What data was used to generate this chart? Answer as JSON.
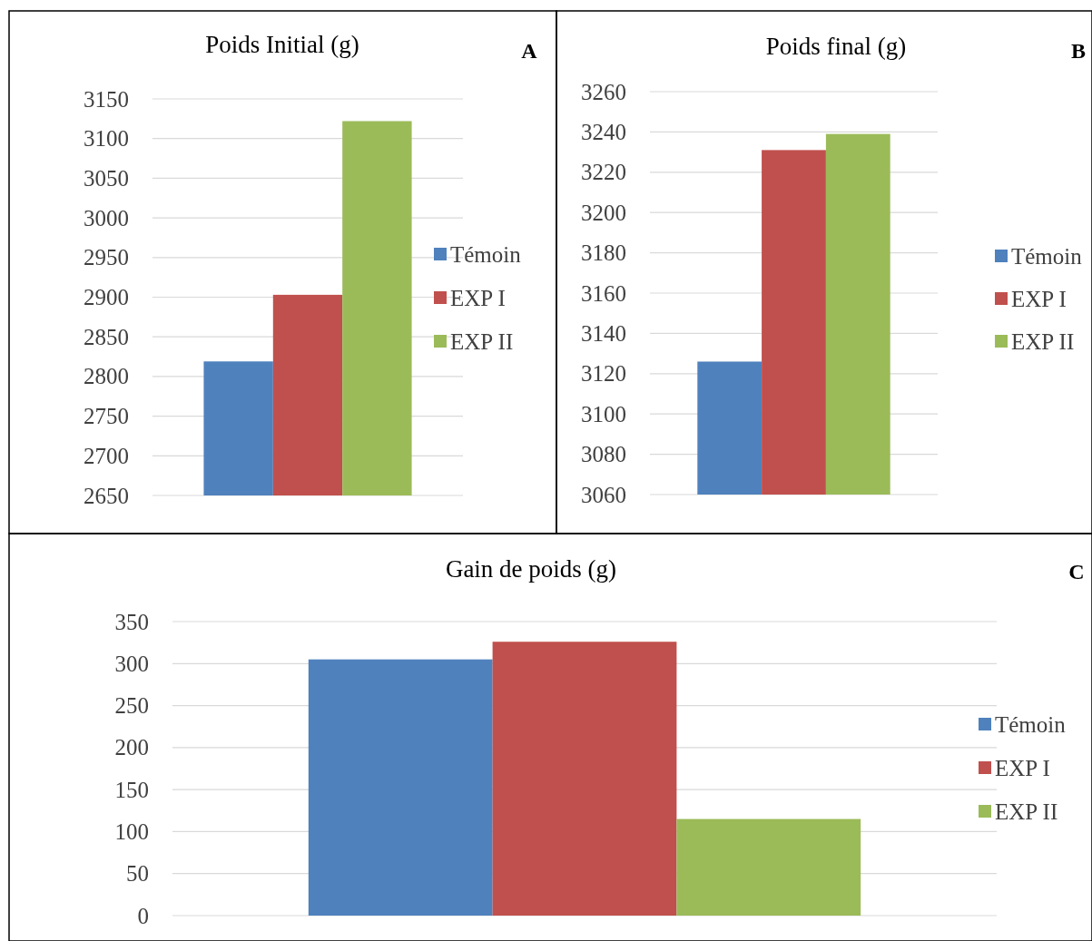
{
  "chart_data": [
    {
      "type": "bar",
      "title": "Poids Initial (g)",
      "annotations": [
        "A"
      ],
      "categories": [
        null
      ],
      "series": [
        {
          "name": "Témoin",
          "color": "#4f81bd",
          "values": [
            2819
          ]
        },
        {
          "name": "EXP I",
          "color": "#c0504d",
          "values": [
            2903
          ]
        },
        {
          "name": "EXP II",
          "color": "#9bbb59",
          "values": [
            3122
          ]
        }
      ],
      "ylim": [
        2650,
        3150
      ],
      "yticks": [
        2650,
        2700,
        2750,
        2800,
        2850,
        2900,
        2950,
        3000,
        3050,
        3100,
        3150
      ],
      "grid": "y",
      "legend": "right"
    },
    {
      "type": "bar",
      "title": "Poids final (g)",
      "annotations": [
        "B"
      ],
      "categories": [
        null
      ],
      "series": [
        {
          "name": "Témoin",
          "color": "#4f81bd",
          "values": [
            3126
          ]
        },
        {
          "name": "EXP I",
          "color": "#c0504d",
          "values": [
            3231
          ]
        },
        {
          "name": "EXP II",
          "color": "#9bbb59",
          "values": [
            3239
          ]
        }
      ],
      "ylim": [
        3060,
        3260
      ],
      "yticks": [
        3060,
        3080,
        3100,
        3120,
        3140,
        3160,
        3180,
        3200,
        3220,
        3240,
        3260
      ],
      "grid": "y",
      "legend": "right"
    },
    {
      "type": "bar",
      "title": "Gain de poids (g)",
      "annotations": [
        "C"
      ],
      "categories": [
        null
      ],
      "series": [
        {
          "name": "Témoin",
          "color": "#4f81bd",
          "values": [
            305
          ]
        },
        {
          "name": "EXP I",
          "color": "#c0504d",
          "values": [
            326
          ]
        },
        {
          "name": "EXP II",
          "color": "#9bbb59",
          "values": [
            115
          ]
        }
      ],
      "ylim": [
        0,
        350
      ],
      "yticks": [
        0,
        50,
        100,
        150,
        200,
        250,
        300,
        350
      ],
      "grid": "y",
      "legend": "right"
    }
  ]
}
